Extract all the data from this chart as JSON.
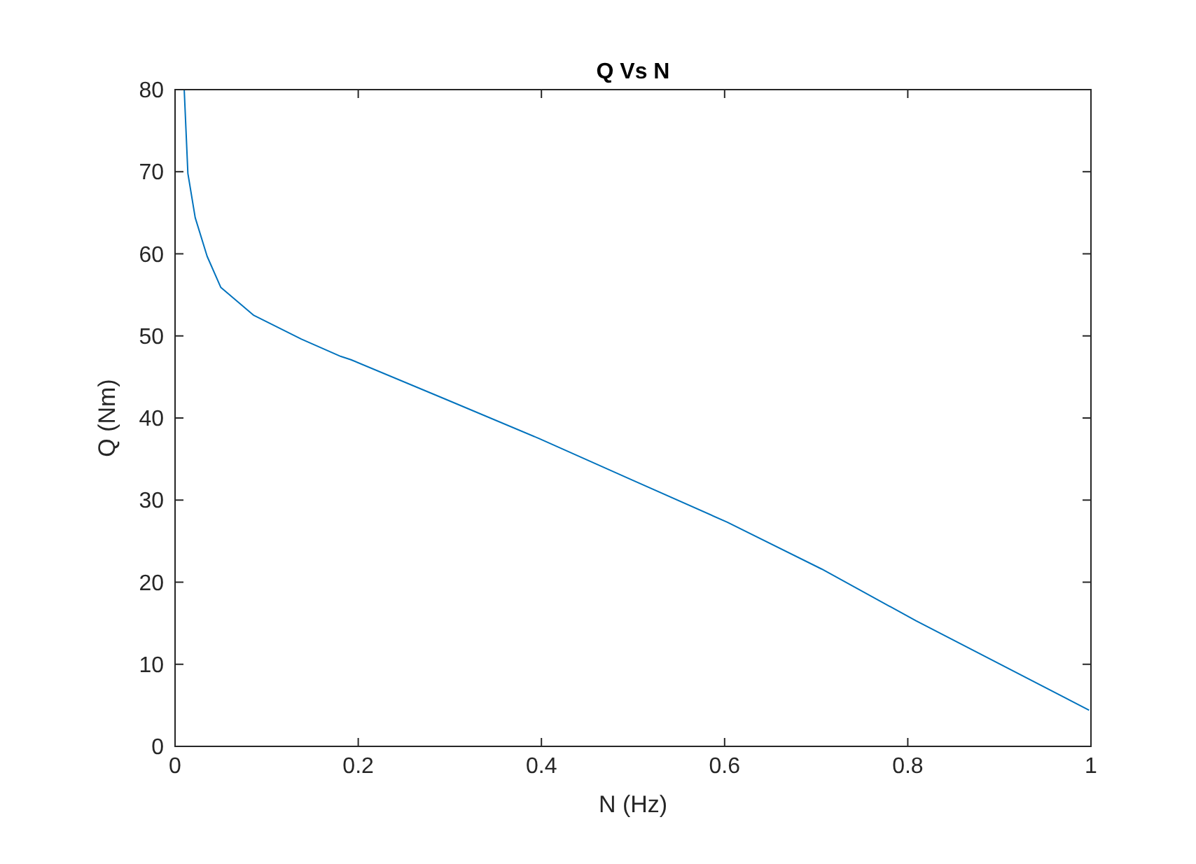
{
  "chart_data": {
    "type": "line",
    "title": "Q Vs N",
    "xlabel": "N (Hz)",
    "ylabel": "Q (Nm)",
    "xlim": [
      0,
      1
    ],
    "ylim": [
      0,
      80
    ],
    "xticks": [
      0,
      0.2,
      0.4,
      0.6,
      0.8,
      1
    ],
    "yticks": [
      0,
      10,
      20,
      30,
      40,
      50,
      60,
      70,
      80
    ],
    "grid": false,
    "series": [
      {
        "color": "#0072bd",
        "x": [
          0.01,
          0.014,
          0.022,
          0.035,
          0.05,
          0.086,
          0.138,
          0.181,
          0.192,
          0.295,
          0.3975,
          0.5,
          0.603,
          0.706,
          0.809,
          0.998
        ],
        "values": [
          80,
          69.8,
          64.4,
          59.7,
          55.9,
          52.5,
          49.6,
          47.5,
          47.1,
          42.3,
          37.5,
          32.4,
          27.3,
          21.6,
          15.3,
          4.4
        ]
      }
    ]
  }
}
